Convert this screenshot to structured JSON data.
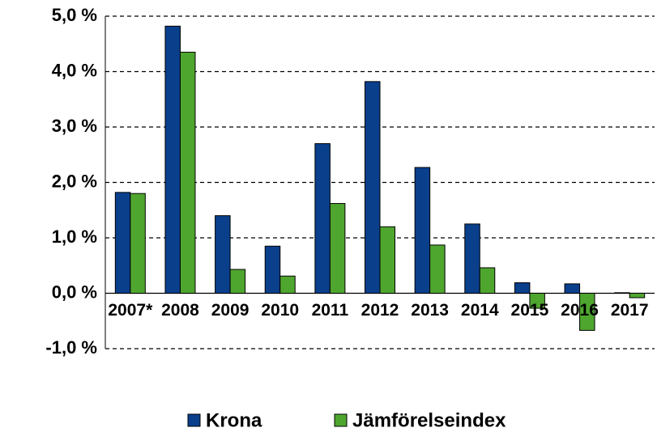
{
  "chart_data": {
    "type": "bar",
    "categories": [
      "2007*",
      "2008",
      "2009",
      "2010",
      "2011",
      "2012",
      "2013",
      "2014",
      "2015",
      "2016",
      "2017"
    ],
    "series": [
      {
        "name": "Krona",
        "color": "#0a3f8c",
        "values": [
          1.82,
          4.82,
          1.4,
          0.85,
          2.7,
          3.82,
          2.27,
          1.25,
          0.19,
          0.17,
          0.01
        ]
      },
      {
        "name": "Jämförelseindex",
        "color": "#4fa62f",
        "values": [
          1.8,
          4.35,
          0.43,
          0.31,
          1.62,
          1.2,
          0.87,
          0.46,
          -0.27,
          -0.67,
          -0.08
        ]
      }
    ],
    "ylim": [
      -1,
      5
    ],
    "yticks": [
      {
        "value": -1,
        "label": "-1,0 %"
      },
      {
        "value": 0,
        "label": "0,0 %"
      },
      {
        "value": 1,
        "label": "1,0 %"
      },
      {
        "value": 2,
        "label": "2,0 %"
      },
      {
        "value": 3,
        "label": "3,0 %"
      },
      {
        "value": 4,
        "label": "4,0 %"
      },
      {
        "value": 5,
        "label": "5,0 %"
      }
    ],
    "grid": true,
    "legend": "bottom"
  }
}
